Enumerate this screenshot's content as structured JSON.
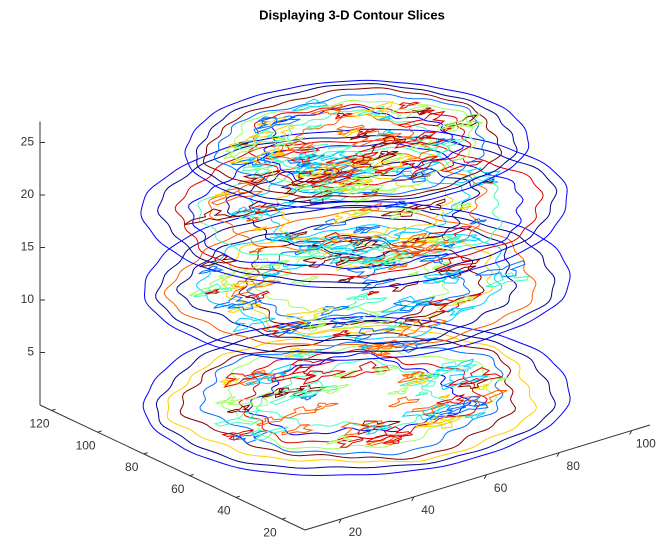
{
  "chart_data": {
    "type": "contourslice3d",
    "title": "Displaying 3-D Contour Slices",
    "z_slices": [
      1,
      12,
      19,
      25
    ],
    "xlim": [
      10,
      105
    ],
    "xticks": [
      20,
      40,
      60,
      80,
      100
    ],
    "ylim": [
      10,
      125
    ],
    "yticks": [
      20,
      40,
      60,
      80,
      100,
      120
    ],
    "zlim": [
      0,
      27
    ],
    "zticks": [
      5,
      10,
      15,
      20,
      25
    ],
    "colormap": [
      "#00008f",
      "#0000ff",
      "#0070ff",
      "#00d0ff",
      "#40ffbf",
      "#a0ff60",
      "#ffd000",
      "#ff6000",
      "#e00000",
      "#800000"
    ]
  }
}
